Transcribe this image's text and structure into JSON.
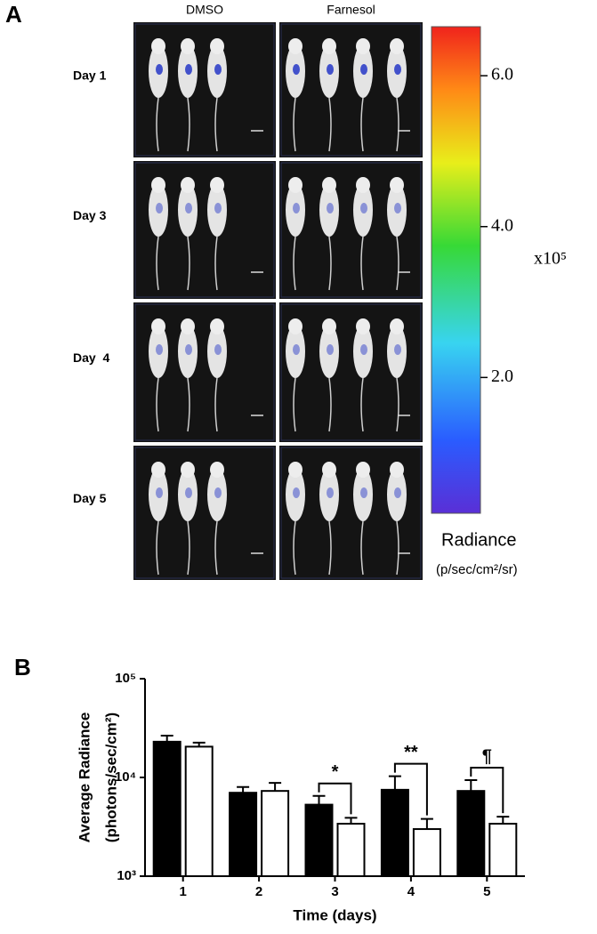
{
  "panel_a": {
    "label": "A",
    "columns": [
      "DMSO",
      "Farnesol"
    ],
    "rows": [
      "Day 1",
      "Day 3",
      "Day  4",
      "Day 5"
    ],
    "colorbar": {
      "lim": [
        0.2,
        6.65
      ],
      "ticks": [
        {
          "value": 2,
          "label": "2.0"
        },
        {
          "value": 4,
          "label": "4.0"
        },
        {
          "value": 6,
          "label": "6.0"
        }
      ],
      "multiplier": "x10⁵",
      "title": "Radiance",
      "units": "(p/sec/cm²/sr)"
    }
  },
  "panel_b": {
    "label": "B"
  },
  "chart_data": {
    "type": "bar",
    "log_scale": true,
    "ylabel": [
      "Average Radiance",
      "(photons/sec/cm²)"
    ],
    "xlabel": "Time (days)",
    "categories": [
      "1",
      "2",
      "3",
      "4",
      "5"
    ],
    "series": [
      {
        "color": "#000000",
        "values": [
          23000,
          7000,
          5300,
          7500,
          7300
        ],
        "errors": [
          3500,
          1000,
          1200,
          2800,
          2100
        ]
      },
      {
        "color": "#ffffff",
        "values": [
          20500,
          7300,
          3400,
          3000,
          3400
        ],
        "errors": [
          2000,
          1500,
          500,
          800,
          600
        ]
      }
    ],
    "ylim": [
      1000,
      100000
    ],
    "yticks": [
      {
        "value": 1000,
        "label": "10³"
      },
      {
        "value": 10000,
        "label": "10⁴"
      },
      {
        "value": 100000,
        "label": "10⁵"
      }
    ],
    "annotations": [
      {
        "text": "*",
        "x": "3"
      },
      {
        "text": "**",
        "x": "4"
      },
      {
        "text": "¶",
        "x": "5"
      }
    ]
  }
}
